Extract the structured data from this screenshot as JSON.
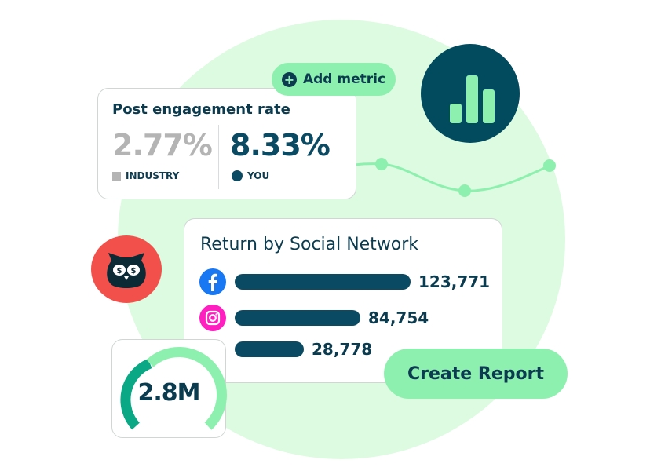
{
  "engagement": {
    "title": "Post engagement rate",
    "industry_value": "2.77%",
    "industry_label": "INDUSTRY",
    "you_value": "8.33%",
    "you_label": "YOU"
  },
  "add_metric": {
    "label": "Add metric",
    "icon": "plus-circle-icon"
  },
  "chart_badge": {
    "icon": "bar-chart-icon"
  },
  "return": {
    "title": "Return by Social Network",
    "rows": [
      {
        "network": "facebook",
        "icon": "facebook-icon",
        "value": "123,771",
        "color": "#1877f2"
      },
      {
        "network": "instagram",
        "icon": "instagram-icon",
        "value": "84,754",
        "color": "#ff1fc0"
      },
      {
        "network": "",
        "icon": "",
        "value": "28,778"
      }
    ]
  },
  "gauge": {
    "value": "2.8M"
  },
  "create_report": {
    "label": "Create Report"
  },
  "colors": {
    "accent_green": "#8ef0ae",
    "navy": "#0b3b4f",
    "bg_green": "#dcfbe0",
    "owl_red": "#f2504b"
  }
}
